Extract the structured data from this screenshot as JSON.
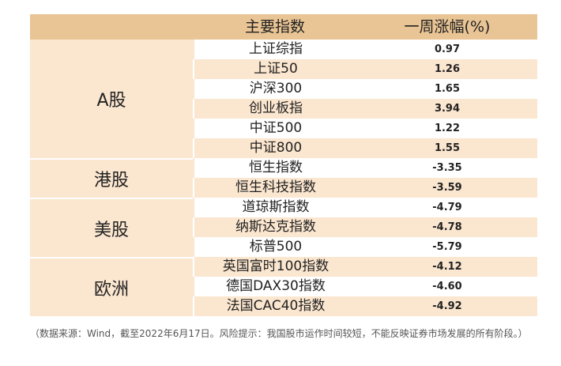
{
  "header": {
    "col_name": "主要指数",
    "col_change": "一周涨幅(%)"
  },
  "groups": [
    "A股",
    "港股",
    "美股",
    "欧洲"
  ],
  "rows": [
    {
      "name": "上证综指",
      "change": "0.97"
    },
    {
      "name": "上证50",
      "change": "1.26"
    },
    {
      "name": "沪深300",
      "change": "1.65"
    },
    {
      "name": "创业板指",
      "change": "3.94"
    },
    {
      "name": "中证500",
      "change": "1.22"
    },
    {
      "name": "中证800",
      "change": "1.55"
    },
    {
      "name": "恒生指数",
      "change": "-3.35"
    },
    {
      "name": "恒生科技指数",
      "change": "-3.59"
    },
    {
      "name": "道琼斯指数",
      "change": "-4.79"
    },
    {
      "name": "纳斯达克指数",
      "change": "-4.78"
    },
    {
      "name": "标普500",
      "change": "-5.79"
    },
    {
      "name": "英国富时100指数",
      "change": "-4.12"
    },
    {
      "name": "德国DAX30指数",
      "change": "-4.60"
    },
    {
      "name": "法国CAC40指数",
      "change": "-4.92"
    }
  ],
  "note": "（数据来源：Wind，截至2022年6月17日。风险提示：我国股市运作时间较短，不能反映证券市场发展的所有阶段。）"
}
